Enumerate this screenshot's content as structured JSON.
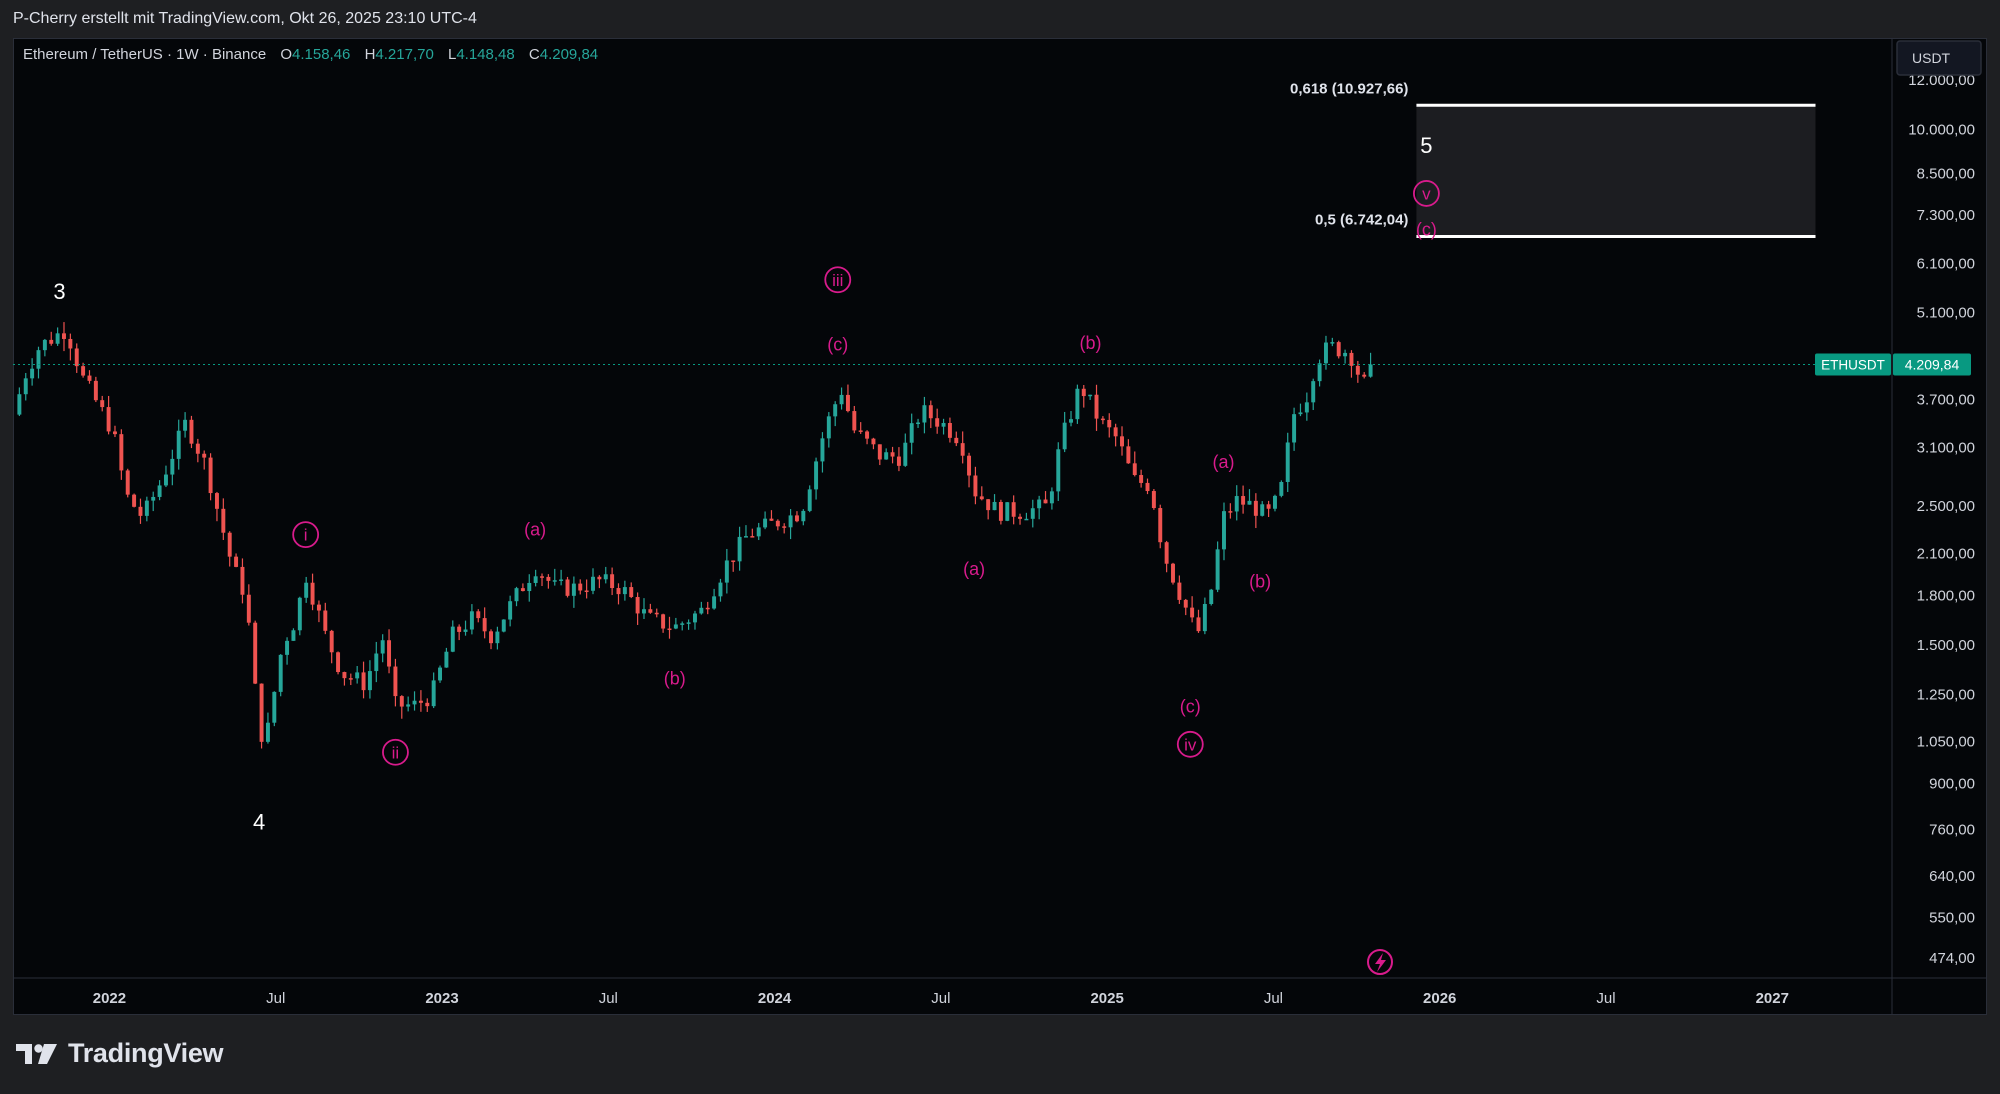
{
  "header": {
    "attribution": "P-Cherry erstellt mit TradingView.com, Okt 26, 2025 23:10 UTC-4"
  },
  "legend": {
    "symbol": "Ethereum / TetherUS · 1W · Binance",
    "o_label": "O",
    "o_value": "4.158,46",
    "h_label": "H",
    "h_value": "4.217,70",
    "l_label": "L",
    "l_value": "4.148,48",
    "c_label": "C",
    "c_value": "4.209,84"
  },
  "currency_button": "USDT",
  "price_tag": {
    "symbol": "ETHUSDT",
    "value": "4.209,84"
  },
  "brand": {
    "name": "TradingView"
  },
  "colors": {
    "up": "#26a69a",
    "down": "#ef5350",
    "wave": "#d81b8c",
    "accent": "#089981",
    "background": "#040609"
  },
  "chart_data": {
    "type": "candlestick",
    "scale": "log",
    "ylim": [
      440,
      14000
    ],
    "y_ticks": [
      {
        "v": 12000,
        "label": "12.000,00"
      },
      {
        "v": 10000,
        "label": "10.000,00"
      },
      {
        "v": 8500,
        "label": "8.500,00"
      },
      {
        "v": 7300,
        "label": "7.300,00"
      },
      {
        "v": 6100,
        "label": "6.100,00"
      },
      {
        "v": 5100,
        "label": "5.100,00"
      },
      {
        "v": 3700,
        "label": "3.700,00"
      },
      {
        "v": 3100,
        "label": "3.100,00"
      },
      {
        "v": 2500,
        "label": "2.500,00"
      },
      {
        "v": 2100,
        "label": "2.100,00"
      },
      {
        "v": 1800,
        "label": "1.800,00"
      },
      {
        "v": 1500,
        "label": "1.500,00"
      },
      {
        "v": 1250,
        "label": "1.250,00"
      },
      {
        "v": 1050,
        "label": "1.050,00"
      },
      {
        "v": 900,
        "label": "900,00"
      },
      {
        "v": 760,
        "label": "760,00"
      },
      {
        "v": 640,
        "label": "640,00"
      },
      {
        "v": 550,
        "label": "550,00"
      },
      {
        "v": 474,
        "label": "474,00"
      }
    ],
    "x_ticks": [
      {
        "t": 2022.0,
        "label": "2022",
        "bold": true
      },
      {
        "t": 2022.5,
        "label": "Jul",
        "bold": false
      },
      {
        "t": 2023.0,
        "label": "2023",
        "bold": true
      },
      {
        "t": 2023.5,
        "label": "Jul",
        "bold": false
      },
      {
        "t": 2024.0,
        "label": "2024",
        "bold": true
      },
      {
        "t": 2024.5,
        "label": "Jul",
        "bold": false
      },
      {
        "t": 2025.0,
        "label": "2025",
        "bold": true
      },
      {
        "t": 2025.5,
        "label": "Jul",
        "bold": false
      },
      {
        "t": 2026.0,
        "label": "2026",
        "bold": true
      },
      {
        "t": 2026.5,
        "label": "Jul",
        "bold": false
      },
      {
        "t": 2027.0,
        "label": "2027",
        "bold": true
      }
    ],
    "xlim": [
      2021.71,
      2027.36
    ],
    "last_price": 4209.84,
    "anchors": [
      [
        2021.71,
        3500
      ],
      [
        2021.75,
        4100
      ],
      [
        2021.79,
        4500
      ],
      [
        2021.87,
        4800
      ],
      [
        2021.92,
        4000
      ],
      [
        2022.01,
        3300
      ],
      [
        2022.05,
        2600
      ],
      [
        2022.1,
        2400
      ],
      [
        2022.15,
        2700
      ],
      [
        2022.23,
        3400
      ],
      [
        2022.29,
        2900
      ],
      [
        2022.37,
        2000
      ],
      [
        2022.41,
        1800
      ],
      [
        2022.45,
        1100
      ],
      [
        2022.47,
        1050
      ],
      [
        2022.52,
        1500
      ],
      [
        2022.56,
        1650
      ],
      [
        2022.59,
        1950
      ],
      [
        2022.65,
        1550
      ],
      [
        2022.7,
        1350
      ],
      [
        2022.77,
        1300
      ],
      [
        2022.82,
        1550
      ],
      [
        2022.86,
        1200
      ],
      [
        2022.92,
        1200
      ],
      [
        2022.97,
        1250
      ],
      [
        2023.03,
        1550
      ],
      [
        2023.09,
        1650
      ],
      [
        2023.15,
        1550
      ],
      [
        2023.21,
        1750
      ],
      [
        2023.28,
        2000
      ],
      [
        2023.34,
        1850
      ],
      [
        2023.4,
        1850
      ],
      [
        2023.47,
        1900
      ],
      [
        2023.54,
        1850
      ],
      [
        2023.62,
        1650
      ],
      [
        2023.7,
        1600
      ],
      [
        2023.78,
        1700
      ],
      [
        2023.85,
        2000
      ],
      [
        2023.92,
        2250
      ],
      [
        2024.0,
        2350
      ],
      [
        2024.08,
        2450
      ],
      [
        2024.15,
        3300
      ],
      [
        2024.2,
        3850
      ],
      [
        2024.24,
        3300
      ],
      [
        2024.32,
        3000
      ],
      [
        2024.38,
        3000
      ],
      [
        2024.44,
        3550
      ],
      [
        2024.5,
        3400
      ],
      [
        2024.56,
        3200
      ],
      [
        2024.6,
        2650
      ],
      [
        2024.67,
        2450
      ],
      [
        2024.75,
        2450
      ],
      [
        2024.82,
        2500
      ],
      [
        2024.86,
        3150
      ],
      [
        2024.92,
        3900
      ],
      [
        2024.98,
        3400
      ],
      [
        2025.03,
        3200
      ],
      [
        2025.08,
        2750
      ],
      [
        2025.13,
        2700
      ],
      [
        2025.17,
        2100
      ],
      [
        2025.24,
        1700
      ],
      [
        2025.27,
        1550
      ],
      [
        2025.31,
        1800
      ],
      [
        2025.35,
        2400
      ],
      [
        2025.39,
        2550
      ],
      [
        2025.44,
        2500
      ],
      [
        2025.48,
        2400
      ],
      [
        2025.52,
        2600
      ],
      [
        2025.56,
        3500
      ],
      [
        2025.6,
        3750
      ],
      [
        2025.63,
        4300
      ],
      [
        2025.67,
        4500
      ],
      [
        2025.73,
        4400
      ],
      [
        2025.77,
        3900
      ],
      [
        2025.81,
        4209.84
      ]
    ],
    "fib_levels": [
      {
        "ratio": "0,618",
        "price": 10927.66,
        "label": "0,618 (10.927,66)"
      },
      {
        "ratio": "0,5",
        "price": 6742.04,
        "label": "0,5 (6.742,04)"
      }
    ],
    "fib_zone": {
      "t_start": 2025.93,
      "t_end": 2027.13
    },
    "annotations": [
      {
        "text": "3",
        "t": 2021.85,
        "price": 5500,
        "color": "white",
        "circle": false
      },
      {
        "text": "4",
        "t": 2022.45,
        "price": 780,
        "color": "white",
        "circle": false
      },
      {
        "text": "i",
        "t": 2022.59,
        "price": 2250,
        "color": "wave",
        "circle": true
      },
      {
        "text": "ii",
        "t": 2022.86,
        "price": 1010,
        "color": "wave",
        "circle": true
      },
      {
        "text": "(a)",
        "t": 2023.28,
        "price": 2300,
        "color": "wave",
        "circle": false
      },
      {
        "text": "(b)",
        "t": 2023.7,
        "price": 1330,
        "color": "wave",
        "circle": false
      },
      {
        "text": "iii",
        "t": 2024.19,
        "price": 5750,
        "color": "wave",
        "circle": true
      },
      {
        "text": "(c)",
        "t": 2024.19,
        "price": 4550,
        "color": "wave",
        "circle": false
      },
      {
        "text": "(a)",
        "t": 2024.6,
        "price": 1990,
        "color": "wave",
        "circle": false
      },
      {
        "text": "(b)",
        "t": 2024.95,
        "price": 4570,
        "color": "wave",
        "circle": false
      },
      {
        "text": "(c)",
        "t": 2025.25,
        "price": 1200,
        "color": "wave",
        "circle": false
      },
      {
        "text": "iv",
        "t": 2025.25,
        "price": 1040,
        "color": "wave",
        "circle": true
      },
      {
        "text": "(a)",
        "t": 2025.35,
        "price": 2950,
        "color": "wave",
        "circle": false
      },
      {
        "text": "(b)",
        "t": 2025.46,
        "price": 1900,
        "color": "wave",
        "circle": false
      },
      {
        "text": "5",
        "t": 2025.96,
        "price": 9400,
        "color": "white",
        "circle": false
      },
      {
        "text": "v",
        "t": 2025.96,
        "price": 7900,
        "color": "wave",
        "circle": true
      },
      {
        "text": "(c)",
        "t": 2025.96,
        "price": 6950,
        "color": "wave",
        "circle": false
      }
    ]
  }
}
